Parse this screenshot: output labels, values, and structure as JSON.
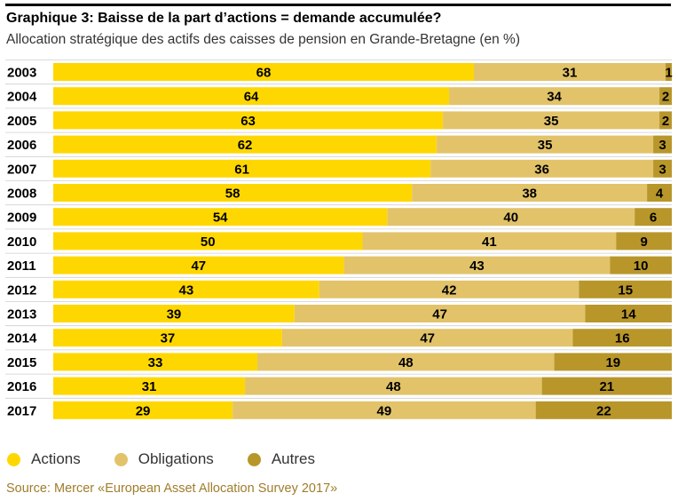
{
  "title": "Graphique 3: Baisse de la part d’actions = demande accumulée?",
  "subtitle": "Allocation stratégique des actifs des caisses de pension en Grande-Bretagne (en %)",
  "source": "Source: Mercer «European Asset Allocation Survey 2017»",
  "colors": {
    "actions": "#FFD700",
    "obligations": "#E2C36A",
    "autres": "#B8962A"
  },
  "chart_data": {
    "type": "bar",
    "orientation": "horizontal",
    "stacked": true,
    "categories": [
      "2003",
      "2004",
      "2005",
      "2006",
      "2007",
      "2008",
      "2009",
      "2010",
      "2011",
      "2012",
      "2013",
      "2014",
      "2015",
      "2016",
      "2017"
    ],
    "series": [
      {
        "name": "Actions",
        "values": [
          68,
          64,
          63,
          62,
          61,
          58,
          54,
          50,
          47,
          43,
          39,
          37,
          33,
          31,
          29
        ]
      },
      {
        "name": "Obligations",
        "values": [
          31,
          34,
          35,
          35,
          36,
          38,
          40,
          41,
          43,
          42,
          47,
          47,
          48,
          48,
          49
        ]
      },
      {
        "name": "Autres",
        "values": [
          1,
          2,
          2,
          3,
          3,
          4,
          6,
          9,
          10,
          15,
          14,
          16,
          19,
          21,
          22
        ]
      }
    ],
    "legend": "bottom-left",
    "grid": false
  }
}
